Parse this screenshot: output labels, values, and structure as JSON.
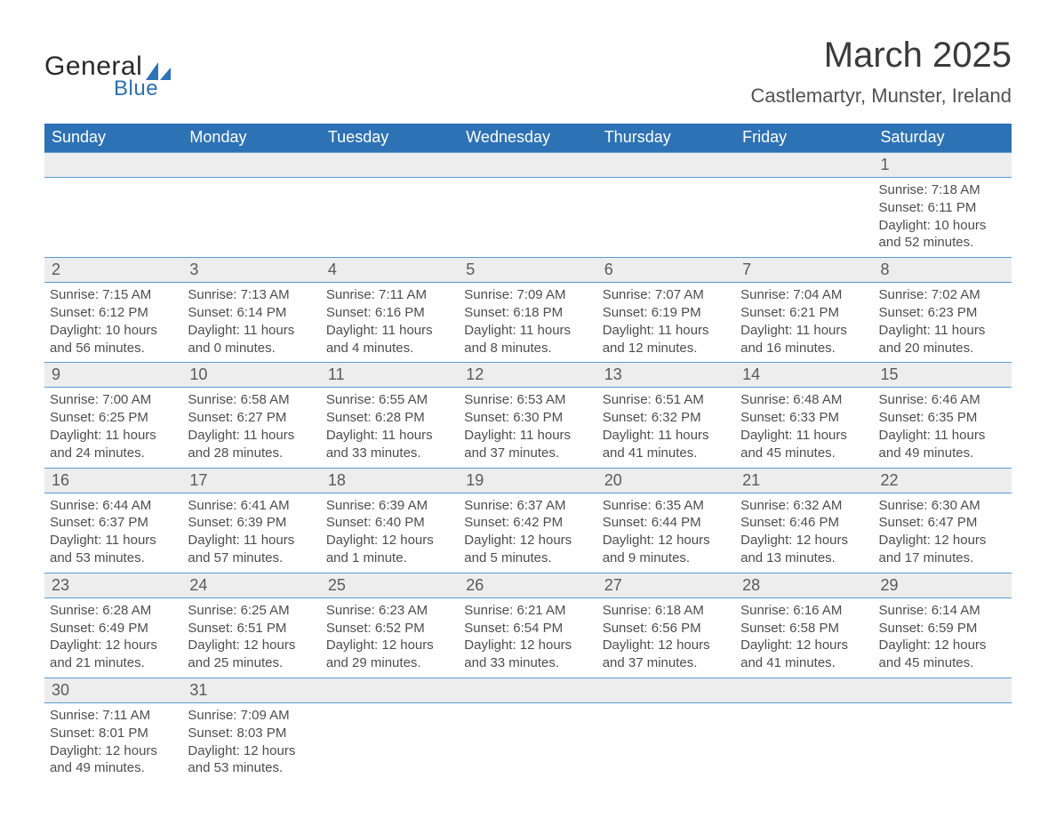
{
  "brand": {
    "general": "General",
    "blue": "Blue",
    "logo_color": "#2d72b5"
  },
  "title": "March 2025",
  "location": "Castlemartyr, Munster, Ireland",
  "header_bg": "#2d72b5",
  "daynum_bg": "#ededed",
  "weekdays": [
    "Sunday",
    "Monday",
    "Tuesday",
    "Wednesday",
    "Thursday",
    "Friday",
    "Saturday"
  ],
  "weeks": [
    [
      null,
      null,
      null,
      null,
      null,
      null,
      {
        "d": "1",
        "sr": "7:18 AM",
        "ss": "6:11 PM",
        "dl": "10 hours and 52 minutes."
      }
    ],
    [
      {
        "d": "2",
        "sr": "7:15 AM",
        "ss": "6:12 PM",
        "dl": "10 hours and 56 minutes."
      },
      {
        "d": "3",
        "sr": "7:13 AM",
        "ss": "6:14 PM",
        "dl": "11 hours and 0 minutes."
      },
      {
        "d": "4",
        "sr": "7:11 AM",
        "ss": "6:16 PM",
        "dl": "11 hours and 4 minutes."
      },
      {
        "d": "5",
        "sr": "7:09 AM",
        "ss": "6:18 PM",
        "dl": "11 hours and 8 minutes."
      },
      {
        "d": "6",
        "sr": "7:07 AM",
        "ss": "6:19 PM",
        "dl": "11 hours and 12 minutes."
      },
      {
        "d": "7",
        "sr": "7:04 AM",
        "ss": "6:21 PM",
        "dl": "11 hours and 16 minutes."
      },
      {
        "d": "8",
        "sr": "7:02 AM",
        "ss": "6:23 PM",
        "dl": "11 hours and 20 minutes."
      }
    ],
    [
      {
        "d": "9",
        "sr": "7:00 AM",
        "ss": "6:25 PM",
        "dl": "11 hours and 24 minutes."
      },
      {
        "d": "10",
        "sr": "6:58 AM",
        "ss": "6:27 PM",
        "dl": "11 hours and 28 minutes."
      },
      {
        "d": "11",
        "sr": "6:55 AM",
        "ss": "6:28 PM",
        "dl": "11 hours and 33 minutes."
      },
      {
        "d": "12",
        "sr": "6:53 AM",
        "ss": "6:30 PM",
        "dl": "11 hours and 37 minutes."
      },
      {
        "d": "13",
        "sr": "6:51 AM",
        "ss": "6:32 PM",
        "dl": "11 hours and 41 minutes."
      },
      {
        "d": "14",
        "sr": "6:48 AM",
        "ss": "6:33 PM",
        "dl": "11 hours and 45 minutes."
      },
      {
        "d": "15",
        "sr": "6:46 AM",
        "ss": "6:35 PM",
        "dl": "11 hours and 49 minutes."
      }
    ],
    [
      {
        "d": "16",
        "sr": "6:44 AM",
        "ss": "6:37 PM",
        "dl": "11 hours and 53 minutes."
      },
      {
        "d": "17",
        "sr": "6:41 AM",
        "ss": "6:39 PM",
        "dl": "11 hours and 57 minutes."
      },
      {
        "d": "18",
        "sr": "6:39 AM",
        "ss": "6:40 PM",
        "dl": "12 hours and 1 minute."
      },
      {
        "d": "19",
        "sr": "6:37 AM",
        "ss": "6:42 PM",
        "dl": "12 hours and 5 minutes."
      },
      {
        "d": "20",
        "sr": "6:35 AM",
        "ss": "6:44 PM",
        "dl": "12 hours and 9 minutes."
      },
      {
        "d": "21",
        "sr": "6:32 AM",
        "ss": "6:46 PM",
        "dl": "12 hours and 13 minutes."
      },
      {
        "d": "22",
        "sr": "6:30 AM",
        "ss": "6:47 PM",
        "dl": "12 hours and 17 minutes."
      }
    ],
    [
      {
        "d": "23",
        "sr": "6:28 AM",
        "ss": "6:49 PM",
        "dl": "12 hours and 21 minutes."
      },
      {
        "d": "24",
        "sr": "6:25 AM",
        "ss": "6:51 PM",
        "dl": "12 hours and 25 minutes."
      },
      {
        "d": "25",
        "sr": "6:23 AM",
        "ss": "6:52 PM",
        "dl": "12 hours and 29 minutes."
      },
      {
        "d": "26",
        "sr": "6:21 AM",
        "ss": "6:54 PM",
        "dl": "12 hours and 33 minutes."
      },
      {
        "d": "27",
        "sr": "6:18 AM",
        "ss": "6:56 PM",
        "dl": "12 hours and 37 minutes."
      },
      {
        "d": "28",
        "sr": "6:16 AM",
        "ss": "6:58 PM",
        "dl": "12 hours and 41 minutes."
      },
      {
        "d": "29",
        "sr": "6:14 AM",
        "ss": "6:59 PM",
        "dl": "12 hours and 45 minutes."
      }
    ],
    [
      {
        "d": "30",
        "sr": "7:11 AM",
        "ss": "8:01 PM",
        "dl": "12 hours and 49 minutes."
      },
      {
        "d": "31",
        "sr": "7:09 AM",
        "ss": "8:03 PM",
        "dl": "12 hours and 53 minutes."
      },
      null,
      null,
      null,
      null,
      null
    ]
  ],
  "labels": {
    "sunrise": "Sunrise:",
    "sunset": "Sunset:",
    "daylight": "Daylight:"
  }
}
